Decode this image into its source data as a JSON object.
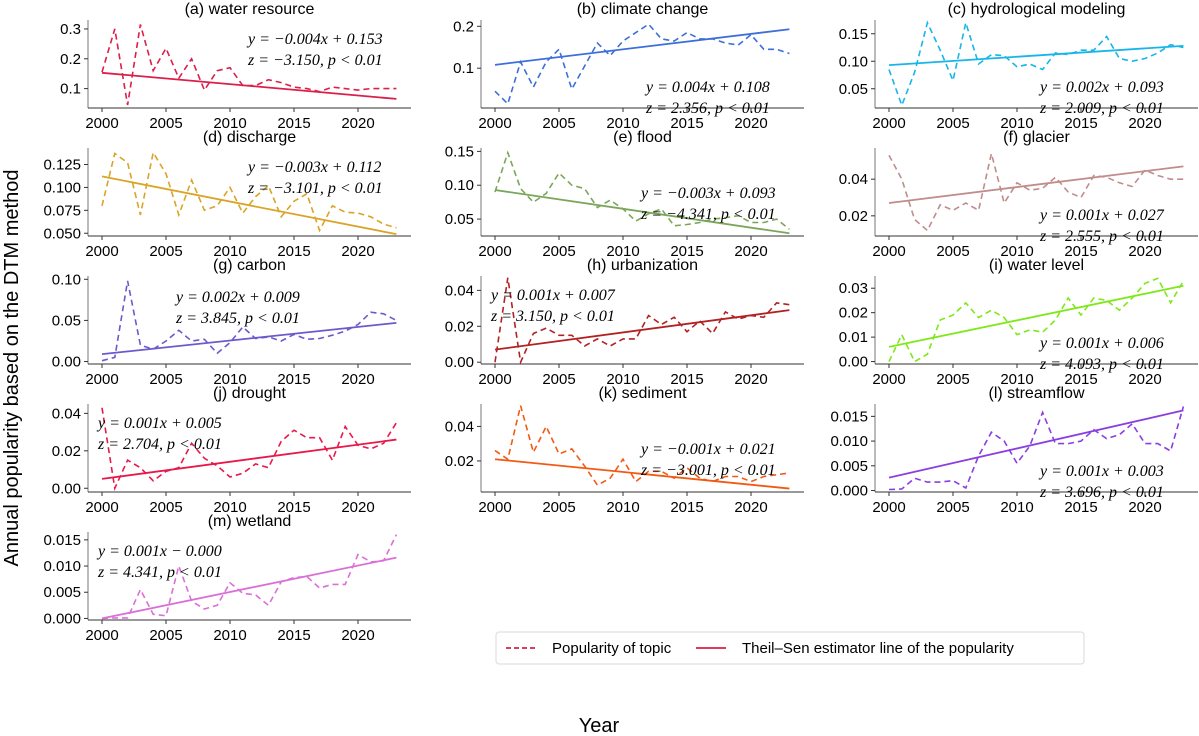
{
  "chart_data": {
    "type": "line",
    "ylabel": "Annual popularity based on the DTM method",
    "xlabel": "Year",
    "x": [
      2000,
      2001,
      2002,
      2003,
      2004,
      2005,
      2006,
      2007,
      2008,
      2009,
      2010,
      2011,
      2012,
      2013,
      2014,
      2015,
      2016,
      2017,
      2018,
      2019,
      2020,
      2021,
      2022,
      2023
    ],
    "xticks": [
      2000,
      2005,
      2010,
      2015,
      2020
    ],
    "grid": false,
    "legend": {
      "placement": "bottom-center",
      "entries": [
        {
          "label": "Popularity of topic",
          "style": "dashed"
        },
        {
          "label": "Theil–Sen estimator line of the popularity",
          "style": "solid"
        }
      ]
    },
    "panels": [
      {
        "title": "(a) water resource",
        "color": "#dc1e4a",
        "ylim": [
          0.035,
          0.33
        ],
        "yticks": [
          0.1,
          0.2,
          0.3
        ],
        "ytick_labels": [
          "0.1",
          "0.2",
          "0.3"
        ],
        "values": [
          0.155,
          0.3,
          0.045,
          0.315,
          0.16,
          0.235,
          0.135,
          0.2,
          0.095,
          0.16,
          0.17,
          0.11,
          0.11,
          0.13,
          0.12,
          0.105,
          0.1,
          0.09,
          0.105,
          0.1,
          0.095,
          0.1,
          0.1,
          0.1
        ],
        "trend": [
          0.153,
          0.0655
        ],
        "eq_line1": "y = −0.004x + 0.153",
        "eq_line2": "z = −3.150,  p < 0.01",
        "eq_pos": "top-right"
      },
      {
        "title": "(b) climate change",
        "color": "#3d6fd9",
        "ylim": [
          0.005,
          0.215
        ],
        "yticks": [
          0.1,
          0.2
        ],
        "ytick_labels": [
          "0.1",
          "0.2"
        ],
        "values": [
          0.045,
          0.015,
          0.115,
          0.055,
          0.115,
          0.145,
          0.05,
          0.105,
          0.16,
          0.13,
          0.165,
          0.185,
          0.205,
          0.17,
          0.165,
          0.185,
          0.17,
          0.17,
          0.16,
          0.155,
          0.18,
          0.145,
          0.145,
          0.135
        ],
        "trend": [
          0.108,
          0.193
        ],
        "eq_line1": "y = 0.004x + 0.108",
        "eq_line2": "z = 2.356,  p < 0.01",
        "eq_pos": "bottom-right"
      },
      {
        "title": "(c) hydrological modeling",
        "color": "#17b5ea",
        "ylim": [
          0.015,
          0.175
        ],
        "yticks": [
          0.05,
          0.1,
          0.15
        ],
        "ytick_labels": [
          "0.05",
          "0.10",
          "0.15"
        ],
        "values": [
          0.085,
          0.02,
          0.08,
          0.17,
          0.12,
          0.065,
          0.17,
          0.095,
          0.112,
          0.11,
          0.09,
          0.095,
          0.085,
          0.115,
          0.112,
          0.12,
          0.12,
          0.145,
          0.105,
          0.1,
          0.105,
          0.115,
          0.13,
          0.125
        ],
        "trend": [
          0.093,
          0.128
        ],
        "eq_line1": "y = 0.002x + 0.093",
        "eq_line2": "z = 2.009,  p < 0.01",
        "eq_pos": "bottom-right"
      },
      {
        "title": "(d) discharge",
        "color": "#d9a427",
        "ylim": [
          0.047,
          0.143
        ],
        "yticks": [
          0.05,
          0.075,
          0.1,
          0.125
        ],
        "ytick_labels": [
          "0.050",
          "0.075",
          "0.100",
          "0.125"
        ],
        "values": [
          0.08,
          0.137,
          0.127,
          0.07,
          0.138,
          0.115,
          0.07,
          0.108,
          0.075,
          0.08,
          0.1,
          0.072,
          0.09,
          0.102,
          0.068,
          0.085,
          0.093,
          0.053,
          0.08,
          0.073,
          0.072,
          0.068,
          0.06,
          0.056
        ],
        "trend": [
          0.112,
          0.049
        ],
        "eq_line1": "y = −0.003x + 0.112",
        "eq_line2": "z = −3.101,  p < 0.01",
        "eq_pos": "top-right"
      },
      {
        "title": "(e) flood",
        "color": "#7ba65a",
        "ylim": [
          0.025,
          0.155
        ],
        "yticks": [
          0.05,
          0.1,
          0.15
        ],
        "ytick_labels": [
          "0.05",
          "0.10",
          "0.15"
        ],
        "values": [
          0.09,
          0.148,
          0.095,
          0.075,
          0.088,
          0.118,
          0.1,
          0.095,
          0.067,
          0.078,
          0.065,
          0.047,
          0.058,
          0.065,
          0.04,
          0.042,
          0.045,
          0.05,
          0.052,
          0.055,
          0.045,
          0.045,
          0.05,
          0.035
        ],
        "trend": [
          0.093,
          0.029
        ],
        "eq_line1": "y = −0.003x + 0.093",
        "eq_line2": "z = −4.341,  p < 0.01",
        "eq_pos": "right"
      },
      {
        "title": "(f) glacier",
        "color": "#c08c8c",
        "ylim": [
          0.009,
          0.057
        ],
        "yticks": [
          0.02,
          0.04
        ],
        "ytick_labels": [
          "0.02",
          "0.04"
        ],
        "values": [
          0.053,
          0.04,
          0.018,
          0.012,
          0.026,
          0.023,
          0.027,
          0.023,
          0.054,
          0.027,
          0.038,
          0.034,
          0.035,
          0.041,
          0.033,
          0.03,
          0.042,
          0.041,
          0.038,
          0.036,
          0.045,
          0.042,
          0.04,
          0.04
        ],
        "trend": [
          0.027,
          0.047
        ],
        "eq_line1": "y = 0.001x + 0.027",
        "eq_line2": "z = 2.555,  p < 0.01",
        "eq_pos": "bottom-right"
      },
      {
        "title": "(g) carbon",
        "color": "#6a5acd",
        "ylim": [
          -0.003,
          0.104
        ],
        "yticks": [
          0.0,
          0.05,
          0.1
        ],
        "ytick_labels": [
          "0.00",
          "0.05",
          "0.10"
        ],
        "values": [
          0.001,
          0.005,
          0.098,
          0.02,
          0.015,
          0.025,
          0.038,
          0.025,
          0.027,
          0.01,
          0.023,
          0.042,
          0.028,
          0.03,
          0.025,
          0.033,
          0.027,
          0.028,
          0.032,
          0.037,
          0.045,
          0.06,
          0.058,
          0.05
        ],
        "trend": [
          0.009,
          0.047
        ],
        "eq_line1": "y = 0.002x + 0.009",
        "eq_line2": "z = 3.845,  p < 0.01",
        "eq_pos": "top-center"
      },
      {
        "title": "(h) urbanization",
        "color": "#b22222",
        "ylim": [
          -0.001,
          0.048
        ],
        "yticks": [
          0.0,
          0.02,
          0.04
        ],
        "ytick_labels": [
          "0.00",
          "0.02",
          "0.04"
        ],
        "values": [
          0.0,
          0.047,
          0.0,
          0.016,
          0.019,
          0.015,
          0.015,
          0.009,
          0.013,
          0.009,
          0.013,
          0.013,
          0.026,
          0.021,
          0.025,
          0.017,
          0.023,
          0.016,
          0.028,
          0.024,
          0.026,
          0.025,
          0.033,
          0.032
        ],
        "trend": [
          0.007,
          0.029
        ],
        "eq_line1": "y = 0.001x + 0.007",
        "eq_line2": "z = 3.150,  p < 0.01",
        "eq_pos": "top-left"
      },
      {
        "title": "(i) water level",
        "color": "#7ee81a",
        "ylim": [
          -0.001,
          0.035
        ],
        "yticks": [
          0.0,
          0.01,
          0.02,
          0.03
        ],
        "ytick_labels": [
          "0.00",
          "0.01",
          "0.02",
          "0.03"
        ],
        "values": [
          0.0,
          0.011,
          0.0,
          0.003,
          0.017,
          0.019,
          0.024,
          0.018,
          0.021,
          0.018,
          0.011,
          0.013,
          0.012,
          0.017,
          0.026,
          0.019,
          0.026,
          0.025,
          0.021,
          0.026,
          0.032,
          0.034,
          0.024,
          0.033
        ],
        "trend": [
          0.006,
          0.031
        ],
        "eq_line1": "y = 0.001x + 0.006",
        "eq_line2": "z = 4.093,  p < 0.01",
        "eq_pos": "bottom-right"
      },
      {
        "title": "(j) drought",
        "color": "#e8184a",
        "ylim": [
          -0.002,
          0.045
        ],
        "yticks": [
          0.0,
          0.02,
          0.04
        ],
        "ytick_labels": [
          "0.00",
          "0.02",
          "0.04"
        ],
        "values": [
          0.043,
          0.0,
          0.015,
          0.011,
          0.004,
          0.009,
          0.011,
          0.024,
          0.016,
          0.012,
          0.006,
          0.008,
          0.013,
          0.011,
          0.025,
          0.031,
          0.027,
          0.027,
          0.015,
          0.033,
          0.023,
          0.021,
          0.024,
          0.035
        ],
        "trend": [
          0.005,
          0.026
        ],
        "eq_line1": "y = 0.001x + 0.005",
        "eq_line2": "z = 2.704,  p < 0.01",
        "eq_pos": "top-left"
      },
      {
        "title": "(k) sediment",
        "color": "#f25a14",
        "ylim": [
          0.002,
          0.053
        ],
        "yticks": [
          0.02,
          0.04
        ],
        "ytick_labels": [
          "0.02",
          "0.04"
        ],
        "values": [
          0.026,
          0.021,
          0.052,
          0.025,
          0.04,
          0.024,
          0.027,
          0.017,
          0.006,
          0.01,
          0.021,
          0.008,
          0.014,
          0.014,
          0.01,
          0.016,
          0.01,
          0.008,
          0.011,
          0.011,
          0.008,
          0.011,
          0.012,
          0.013
        ],
        "trend": [
          0.021,
          0.004
        ],
        "eq_line1": "y = −0.001x + 0.021",
        "eq_line2": "z = −3.001,  p < 0.01",
        "eq_pos": "right"
      },
      {
        "title": "(l) streamflow",
        "color": "#8b3ee0",
        "ylim": [
          -0.0003,
          0.0175
        ],
        "yticks": [
          0.0,
          0.005,
          0.01,
          0.015
        ],
        "ytick_labels": [
          "0.000",
          "0.005",
          "0.010",
          "0.015"
        ],
        "values": [
          0.0002,
          0.0003,
          0.0025,
          0.0017,
          0.0017,
          0.002,
          0.0005,
          0.007,
          0.0118,
          0.01,
          0.0055,
          0.009,
          0.0158,
          0.0095,
          0.0095,
          0.01,
          0.0123,
          0.0105,
          0.0113,
          0.0135,
          0.0095,
          0.0095,
          0.008,
          0.017
        ],
        "trend": [
          0.0026,
          0.0162
        ],
        "eq_line1": "y = 0.001x + 0.003",
        "eq_line2": "z = 3.696,  p < 0.01",
        "eq_pos": "bottom-right"
      },
      {
        "title": "(m) wetland",
        "color": "#da70d6",
        "ylim": [
          -0.0003,
          0.0165
        ],
        "yticks": [
          0.0,
          0.005,
          0.01,
          0.015
        ],
        "ytick_labels": [
          "0.000",
          "0.005",
          "0.010",
          "0.015"
        ],
        "values": [
          0.0,
          0.0001,
          0.0001,
          0.0055,
          0.0008,
          0.0005,
          0.01,
          0.0033,
          0.0018,
          0.0025,
          0.0068,
          0.0048,
          0.0045,
          0.0025,
          0.007,
          0.0078,
          0.008,
          0.0058,
          0.0065,
          0.0065,
          0.0122,
          0.0108,
          0.011,
          0.016
        ],
        "trend": [
          0.0,
          0.0116
        ],
        "eq_line1": "y = 0.001x − 0.000",
        "eq_line2": "z = 4.341,  p < 0.01",
        "eq_pos": "top-left"
      }
    ]
  }
}
